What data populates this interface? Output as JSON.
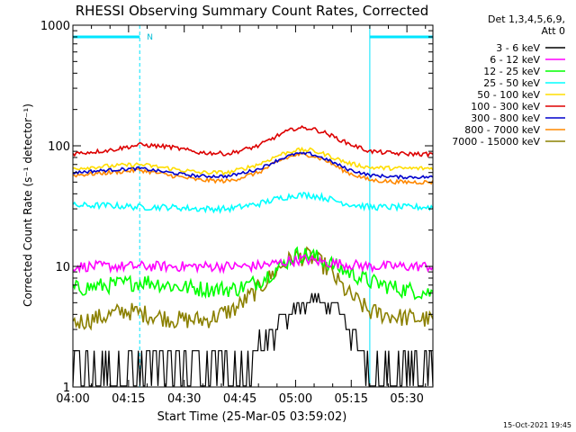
{
  "chart_data": {
    "type": "line",
    "title": "RHESSI Observing Summary Count Rates, Corrected",
    "xlabel": "Start Time (25-Mar-05 03:59:02)",
    "ylabel": "Corrected Count Rate (s⁻¹ detector⁻¹)",
    "yscale": "log",
    "xlim": [
      0,
      97
    ],
    "ylim": [
      1,
      1000
    ],
    "x_ticks": [
      0,
      15,
      30,
      45,
      60,
      75,
      90
    ],
    "x_tick_labels": [
      "04:00",
      "04:15",
      "04:30",
      "04:45",
      "05:00",
      "05:15",
      "05:30"
    ],
    "y_ticks": [
      1,
      10,
      100,
      1000
    ],
    "y_tick_labels": [
      "1",
      "10",
      "100",
      "1000"
    ],
    "detector_label": "Det 1,3,4,5,6,9,",
    "attenuator_label": "Att 0",
    "timestamp": "15-Oct-2021 19:45",
    "night_marker": "N",
    "night_intervals": [
      [
        0,
        18
      ],
      [
        80,
        97
      ]
    ],
    "series": [
      {
        "name": "3 - 6 keV",
        "color": "#000000",
        "x": [
          0,
          8,
          16,
          24,
          28,
          32,
          38,
          44,
          48,
          52,
          56,
          60,
          64,
          68,
          72,
          76,
          80,
          84,
          88,
          92,
          97
        ],
        "y": [
          1.4,
          1.5,
          1.4,
          1.5,
          1.5,
          1.6,
          1.5,
          1.4,
          1.6,
          2.5,
          3.5,
          4.5,
          5.2,
          5,
          4,
          2.5,
          1.5,
          1.4,
          1.5,
          1.4,
          1.4
        ]
      },
      {
        "name": "6 - 12 keV",
        "color": "#ff00ff",
        "x": [
          0,
          10,
          20,
          30,
          40,
          48,
          54,
          58,
          62,
          66,
          72,
          80,
          88,
          97
        ],
        "y": [
          10,
          10,
          10,
          10,
          10,
          10,
          10.5,
          11,
          11.5,
          11,
          10.5,
          10,
          10,
          10
        ]
      },
      {
        "name": "12 - 25 keV",
        "color": "#00ff00",
        "x": [
          0,
          10,
          20,
          28,
          36,
          44,
          50,
          56,
          60,
          64,
          68,
          74,
          80,
          88,
          97
        ],
        "y": [
          6.5,
          7,
          7.5,
          6.8,
          6.5,
          6.5,
          7.5,
          10,
          12.5,
          12.5,
          11,
          9,
          7.5,
          6.5,
          6
        ]
      },
      {
        "name": "25 - 50 keV",
        "color": "#00ffff",
        "x": [
          0,
          10,
          18,
          26,
          34,
          42,
          50,
          56,
          60,
          64,
          68,
          74,
          80,
          88,
          97
        ],
        "y": [
          32,
          32,
          31,
          31,
          30,
          30,
          33,
          37,
          39,
          39,
          37,
          33,
          31,
          31,
          31
        ]
      },
      {
        "name": "50 - 100 keV",
        "color": "#ffdd00",
        "x": [
          0,
          10,
          18,
          26,
          34,
          42,
          50,
          56,
          60,
          64,
          68,
          74,
          80,
          88,
          97
        ],
        "y": [
          65,
          68,
          70,
          65,
          60,
          60,
          70,
          85,
          92,
          92,
          85,
          72,
          66,
          65,
          65
        ]
      },
      {
        "name": "100 - 300 keV",
        "color": "#dd0000",
        "x": [
          0,
          10,
          18,
          26,
          34,
          42,
          50,
          56,
          60,
          64,
          68,
          74,
          80,
          88,
          97
        ],
        "y": [
          86,
          92,
          102,
          98,
          88,
          86,
          100,
          125,
          140,
          140,
          128,
          105,
          90,
          86,
          85
        ]
      },
      {
        "name": "300 - 800 keV",
        "color": "#0000cc",
        "x": [
          0,
          10,
          18,
          26,
          34,
          42,
          50,
          56,
          60,
          64,
          68,
          74,
          80,
          88,
          97
        ],
        "y": [
          60,
          63,
          65,
          60,
          56,
          56,
          64,
          78,
          86,
          86,
          78,
          64,
          57,
          55,
          55
        ]
      },
      {
        "name": "800 - 7000 keV",
        "color": "#ff8800",
        "x": [
          0,
          10,
          18,
          26,
          34,
          42,
          50,
          56,
          60,
          64,
          68,
          74,
          80,
          88,
          97
        ],
        "y": [
          57,
          60,
          63,
          57,
          52,
          51,
          60,
          76,
          84,
          84,
          76,
          60,
          52,
          50,
          50
        ]
      },
      {
        "name": "7000 - 15000 keV",
        "color": "#8b8000",
        "x": [
          0,
          8,
          14,
          20,
          28,
          36,
          44,
          50,
          56,
          60,
          64,
          68,
          74,
          80,
          88,
          97
        ],
        "y": [
          3.4,
          3.8,
          4.3,
          4,
          3.6,
          3.6,
          4.5,
          6.5,
          10,
          12,
          12,
          10,
          6,
          4.2,
          3.8,
          3.6
        ]
      }
    ]
  }
}
